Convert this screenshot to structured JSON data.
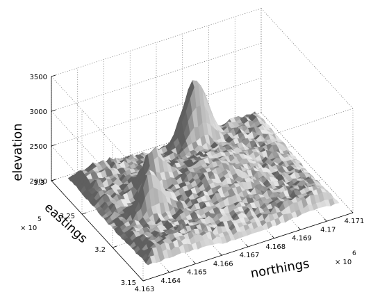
{
  "chart_data": {
    "type": "surface",
    "title": "",
    "xlabel": "northings",
    "ylabel": "eastings",
    "zlabel": "elevation",
    "x_ticks": [
      "4.163",
      "4.164",
      "4.165",
      "4.166",
      "4.167",
      "4.168",
      "4.169",
      "4.17",
      "4.171"
    ],
    "x_multiplier": "× 10",
    "x_exponent": "6",
    "y_ticks": [
      "3.15",
      "3.2",
      "3.25",
      "3.3"
    ],
    "y_multiplier": "× 10",
    "y_exponent": "5",
    "z_ticks": [
      "2000",
      "2500",
      "3000",
      "3500"
    ],
    "xlim": [
      4163000,
      4171000
    ],
    "ylim": [
      315000,
      330000
    ],
    "zlim": [
      2000,
      3500
    ],
    "grid": true,
    "colormap": "gray",
    "peaks": [
      {
        "x": 4167900,
        "y": 327600,
        "z": 3120
      },
      {
        "x": 4164800,
        "y": 321600,
        "z": 2780
      },
      {
        "x": 4165500,
        "y": 324100,
        "z": 2690
      }
    ]
  }
}
